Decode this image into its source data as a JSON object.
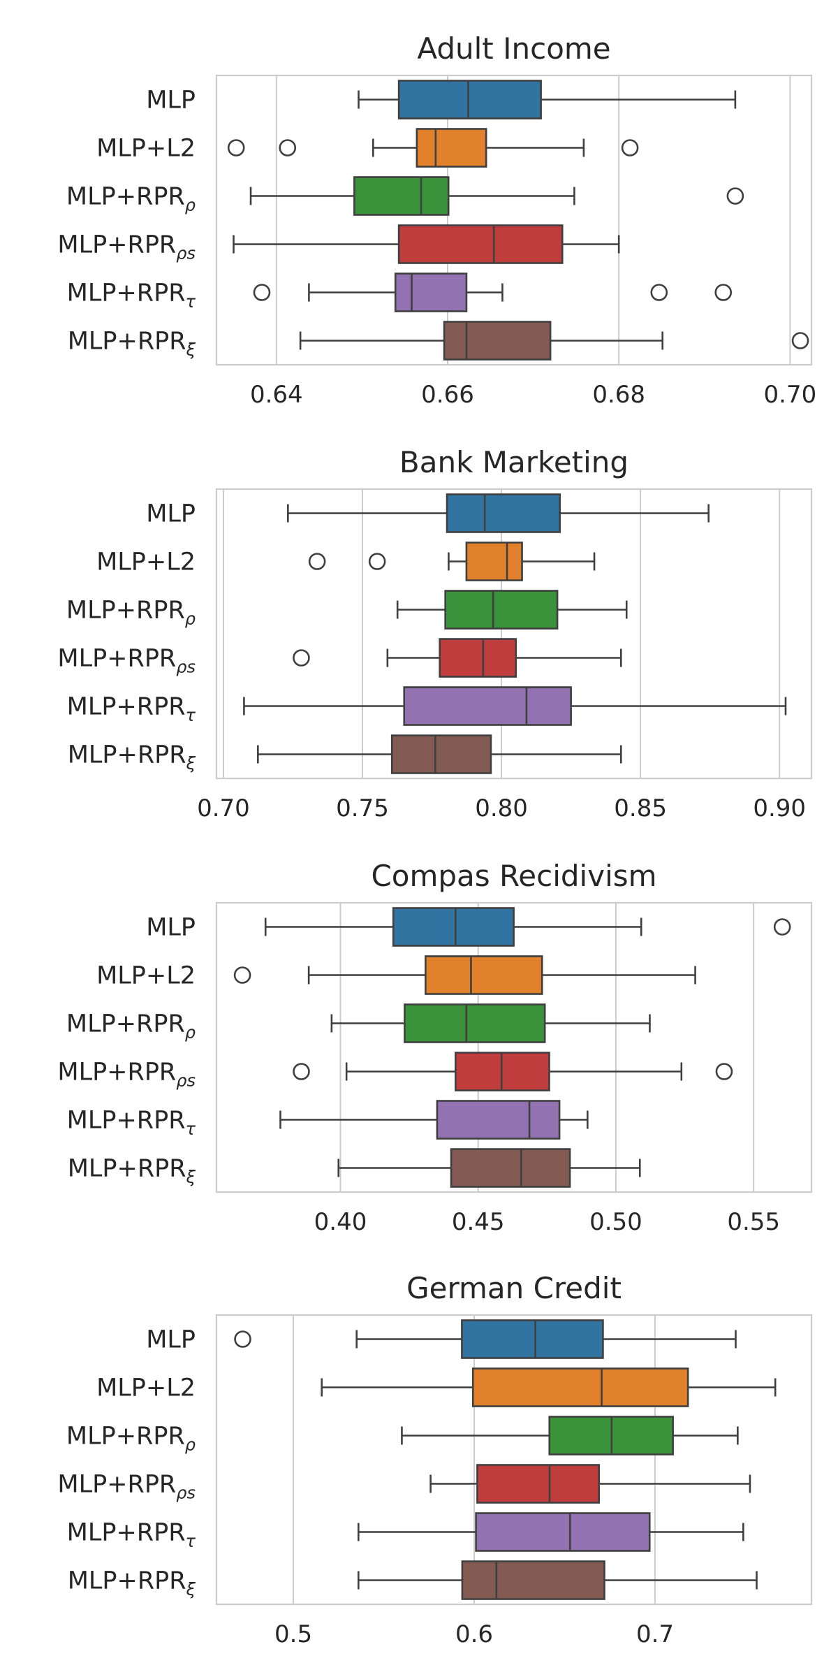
{
  "chart_data": [
    {
      "type": "box",
      "title": "Adult Income",
      "xlim": [
        0.633,
        0.7025
      ],
      "xticks": [
        0.64,
        0.66,
        0.68,
        0.7
      ],
      "xtick_labels": [
        "0.64",
        "0.66",
        "0.68",
        "0.70"
      ],
      "grid": "vertical",
      "series": [
        {
          "label": "MLP",
          "sub": "",
          "color": "#3274a1",
          "whislo": 0.6496,
          "q1": 0.6543,
          "med": 0.6624,
          "q3": 0.6709,
          "whishi": 0.6936,
          "fliers": []
        },
        {
          "label": "MLP+L2",
          "sub": "",
          "color": "#e1812c",
          "whislo": 0.6513,
          "q1": 0.6564,
          "med": 0.6586,
          "q3": 0.6645,
          "whishi": 0.6759,
          "fliers": [
            0.6353,
            0.6413,
            0.6813
          ]
        },
        {
          "label": "MLP+RPR",
          "sub": "ρ",
          "color": "#3a923a",
          "whislo": 0.637,
          "q1": 0.6491,
          "med": 0.6569,
          "q3": 0.6601,
          "whishi": 0.6748,
          "fliers": [
            0.6936
          ]
        },
        {
          "label": "MLP+RPR",
          "sub": "ρs",
          "color": "#c03d3e",
          "whislo": 0.635,
          "q1": 0.6543,
          "med": 0.6654,
          "q3": 0.6734,
          "whishi": 0.68,
          "fliers": []
        },
        {
          "label": "MLP+RPR",
          "sub": "τ",
          "color": "#9372b2",
          "whislo": 0.6438,
          "q1": 0.6539,
          "med": 0.6558,
          "q3": 0.6622,
          "whishi": 0.6664,
          "fliers": [
            0.6383,
            0.6847,
            0.6922
          ]
        },
        {
          "label": "MLP+RPR",
          "sub": "ξ",
          "color": "#845b53",
          "whislo": 0.6428,
          "q1": 0.6596,
          "med": 0.6622,
          "q3": 0.672,
          "whishi": 0.6851,
          "fliers": [
            0.7012
          ]
        }
      ]
    },
    {
      "type": "box",
      "title": "Bank Marketing",
      "xlim": [
        0.6975,
        0.9115
      ],
      "xticks": [
        0.7,
        0.75,
        0.8,
        0.85,
        0.9
      ],
      "xtick_labels": [
        "0.70",
        "0.75",
        "0.80",
        "0.85",
        "0.90"
      ],
      "grid": "vertical",
      "series": [
        {
          "label": "MLP",
          "sub": "",
          "color": "#3274a1",
          "whislo": 0.7232,
          "q1": 0.7804,
          "med": 0.794,
          "q3": 0.821,
          "whishi": 0.8745,
          "fliers": []
        },
        {
          "label": "MLP+L2",
          "sub": "",
          "color": "#e1812c",
          "whislo": 0.781,
          "q1": 0.7874,
          "med": 0.802,
          "q3": 0.8074,
          "whishi": 0.8334,
          "fliers": [
            0.7337,
            0.7553
          ]
        },
        {
          "label": "MLP+RPR",
          "sub": "ρ",
          "color": "#3a923a",
          "whislo": 0.7626,
          "q1": 0.7798,
          "med": 0.797,
          "q3": 0.8201,
          "whishi": 0.845,
          "fliers": []
        },
        {
          "label": "MLP+RPR",
          "sub": "ρs",
          "color": "#c03d3e",
          "whislo": 0.759,
          "q1": 0.7778,
          "med": 0.7934,
          "q3": 0.8052,
          "whishi": 0.843,
          "fliers": [
            0.728
          ]
        },
        {
          "label": "MLP+RPR",
          "sub": "τ",
          "color": "#9372b2",
          "whislo": 0.7074,
          "q1": 0.765,
          "med": 0.809,
          "q3": 0.825,
          "whishi": 0.9022,
          "fliers": []
        },
        {
          "label": "MLP+RPR",
          "sub": "ξ",
          "color": "#845b53",
          "whislo": 0.7124,
          "q1": 0.7606,
          "med": 0.7762,
          "q3": 0.7962,
          "whishi": 0.843,
          "fliers": []
        }
      ]
    },
    {
      "type": "box",
      "title": "Compas Recidivism",
      "xlim": [
        0.355,
        0.571
      ],
      "xticks": [
        0.4,
        0.45,
        0.5,
        0.55
      ],
      "xtick_labels": [
        "0.40",
        "0.45",
        "0.50",
        "0.55"
      ],
      "grid": "vertical",
      "series": [
        {
          "label": "MLP",
          "sub": "",
          "color": "#3274a1",
          "whislo": 0.3728,
          "q1": 0.4192,
          "med": 0.4418,
          "q3": 0.4629,
          "whishi": 0.5092,
          "fliers": [
            0.5604
          ]
        },
        {
          "label": "MLP+L2",
          "sub": "",
          "color": "#e1812c",
          "whislo": 0.3885,
          "q1": 0.4309,
          "med": 0.4474,
          "q3": 0.4732,
          "whishi": 0.5288,
          "fliers": [
            0.3644
          ]
        },
        {
          "label": "MLP+RPR",
          "sub": "ρ",
          "color": "#3a923a",
          "whislo": 0.3968,
          "q1": 0.4233,
          "med": 0.4457,
          "q3": 0.4742,
          "whishi": 0.5123,
          "fliers": []
        },
        {
          "label": "MLP+RPR",
          "sub": "ρs",
          "color": "#c03d3e",
          "whislo": 0.4022,
          "q1": 0.4418,
          "med": 0.4585,
          "q3": 0.4758,
          "whishi": 0.5238,
          "fliers": [
            0.3858,
            0.5393
          ]
        },
        {
          "label": "MLP+RPR",
          "sub": "τ",
          "color": "#9372b2",
          "whislo": 0.3782,
          "q1": 0.4351,
          "med": 0.4686,
          "q3": 0.4795,
          "whishi": 0.4897,
          "fliers": []
        },
        {
          "label": "MLP+RPR",
          "sub": "ξ",
          "color": "#845b53",
          "whislo": 0.3993,
          "q1": 0.4402,
          "med": 0.4656,
          "q3": 0.4833,
          "whishi": 0.5087,
          "fliers": []
        }
      ]
    },
    {
      "type": "box",
      "title": "German Credit",
      "xlim": [
        0.4575,
        0.7865
      ],
      "xticks": [
        0.5,
        0.6,
        0.7
      ],
      "xtick_labels": [
        "0.5",
        "0.6",
        "0.7"
      ],
      "grid": "vertical",
      "series": [
        {
          "label": "MLP",
          "sub": "",
          "color": "#3274a1",
          "whislo": 0.535,
          "q1": 0.5932,
          "med": 0.6338,
          "q3": 0.6712,
          "whishi": 0.7446,
          "fliers": [
            0.472
          ]
        },
        {
          "label": "MLP+L2",
          "sub": "",
          "color": "#e1812c",
          "whislo": 0.5157,
          "q1": 0.5993,
          "med": 0.6705,
          "q3": 0.7182,
          "whishi": 0.7665,
          "fliers": []
        },
        {
          "label": "MLP+RPR",
          "sub": "ρ",
          "color": "#3a923a",
          "whislo": 0.56,
          "q1": 0.6416,
          "med": 0.676,
          "q3": 0.7099,
          "whishi": 0.7457,
          "fliers": []
        },
        {
          "label": "MLP+RPR",
          "sub": "ρs",
          "color": "#c03d3e",
          "whislo": 0.5759,
          "q1": 0.6017,
          "med": 0.6417,
          "q3": 0.669,
          "whishi": 0.7525,
          "fliers": []
        },
        {
          "label": "MLP+RPR",
          "sub": "τ",
          "color": "#9372b2",
          "whislo": 0.536,
          "q1": 0.601,
          "med": 0.653,
          "q3": 0.697,
          "whishi": 0.7488,
          "fliers": []
        },
        {
          "label": "MLP+RPR",
          "sub": "ξ",
          "color": "#845b53",
          "whislo": 0.536,
          "q1": 0.5934,
          "med": 0.6123,
          "q3": 0.672,
          "whishi": 0.7562,
          "fliers": []
        }
      ]
    }
  ]
}
